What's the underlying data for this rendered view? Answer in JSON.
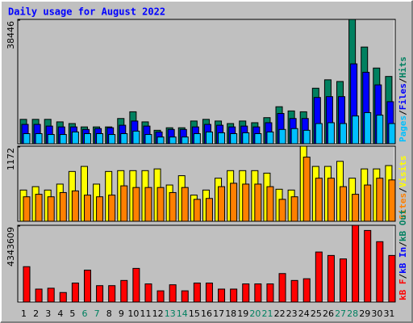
{
  "chart_data": [
    {
      "type": "bar",
      "title": "Daily usage for August 2022",
      "legend_separator": "/",
      "ylim": [
        0,
        38446
      ],
      "yticks": [
        38446
      ],
      "series": [
        {
          "name": "Pages",
          "color": "#00c0ff",
          "values": [
            3120,
            3120,
            2860,
            2860,
            3640,
            3120,
            3120,
            2860,
            3120,
            3900,
            2860,
            2080,
            2080,
            2080,
            3120,
            3640,
            3380,
            3120,
            3380,
            3120,
            3640,
            4420,
            4680,
            4160,
            6240,
            6500,
            6240,
            8580,
            9620,
            8840,
            6240
          ]
        },
        {
          "name": "Files",
          "color": "#0000ff",
          "values": [
            5980,
            5980,
            5460,
            5200,
            5200,
            4420,
            4680,
            4940,
            5720,
            7020,
            5460,
            3640,
            4420,
            4420,
            5200,
            5980,
            5720,
            5200,
            5460,
            5200,
            6500,
            9360,
            7800,
            7800,
            14300,
            14560,
            14560,
            24700,
            22100,
            18200,
            13000
          ]
        },
        {
          "name": "Hits",
          "color": "#008060",
          "values": [
            7540,
            7540,
            7540,
            6760,
            6240,
            5200,
            5200,
            5200,
            7800,
            9880,
            6760,
            4160,
            4940,
            4940,
            7020,
            7540,
            7020,
            6240,
            7020,
            6500,
            8060,
            11440,
            10140,
            9880,
            17160,
            19760,
            19240,
            38446,
            29900,
            23400,
            20800
          ]
        }
      ]
    },
    {
      "type": "bar",
      "legend_separator": "/",
      "ylim": [
        0,
        1172
      ],
      "yticks": [
        1172
      ],
      "series": [
        {
          "name": "Sites",
          "color": "#ff8000",
          "values": [
            382,
            421,
            382,
            448,
            474,
            408,
            382,
            408,
            553,
            527,
            527,
            527,
            448,
            527,
            342,
            356,
            540,
            593,
            580,
            580,
            540,
            342,
            382,
            1001,
            672,
            672,
            540,
            421,
            566,
            672,
            645
          ]
        },
        {
          "name": "Visits",
          "color": "#ffff00",
          "values": [
            487,
            540,
            487,
            580,
            777,
            856,
            580,
            777,
            790,
            790,
            790,
            817,
            566,
            711,
            408,
            487,
            672,
            790,
            790,
            790,
            751,
            500,
            487,
            1172,
            856,
            856,
            935,
            672,
            817,
            817,
            869
          ]
        }
      ]
    },
    {
      "type": "bar",
      "legend_separator": "/",
      "ylim": [
        0,
        4343609
      ],
      "yticks": [
        4343609
      ],
      "categories": [
        "1",
        "2",
        "3",
        "4",
        "5",
        "6",
        "7",
        "8",
        "9",
        "10",
        "11",
        "12",
        "13",
        "14",
        "15",
        "16",
        "17",
        "18",
        "19",
        "20",
        "21",
        "22",
        "23",
        "24",
        "25",
        "26",
        "27",
        "28",
        "29",
        "30",
        "31"
      ],
      "x_label_colors": [
        "#000000",
        "#000000",
        "#000000",
        "#000000",
        "#000000",
        "#008060",
        "#008060",
        "#000000",
        "#000000",
        "#000000",
        "#000000",
        "#000000",
        "#008060",
        "#008060",
        "#000000",
        "#000000",
        "#000000",
        "#000000",
        "#000000",
        "#008060",
        "#008060",
        "#000000",
        "#000000",
        "#000000",
        "#000000",
        "#000000",
        "#008060",
        "#008060",
        "#000000",
        "#000000",
        "#000000"
      ],
      "series": [
        {
          "name": "kB F",
          "color": "#ff0000",
          "values": [
            2001000,
            732000,
            781000,
            537000,
            1074000,
            1806000,
            927000,
            927000,
            1220000,
            1903000,
            1025000,
            634000,
            976000,
            634000,
            1074000,
            1074000,
            732000,
            732000,
            1025000,
            1025000,
            1025000,
            1611000,
            1220000,
            1318000,
            2831000,
            2635000,
            2440000,
            4343609,
            4051000,
            3416000,
            2635000
          ]
        },
        {
          "name": "kB In",
          "color": "#0000ff",
          "values": [
            0,
            0,
            0,
            0,
            0,
            0,
            0,
            0,
            0,
            0,
            0,
            0,
            0,
            0,
            0,
            0,
            0,
            0,
            0,
            0,
            0,
            0,
            0,
            0,
            0,
            0,
            0,
            0,
            0,
            0,
            0
          ]
        },
        {
          "name": "kB Out",
          "color": "#008060",
          "values": [
            0,
            0,
            0,
            0,
            0,
            0,
            0,
            0,
            0,
            0,
            0,
            0,
            0,
            0,
            0,
            0,
            0,
            0,
            0,
            0,
            0,
            0,
            0,
            0,
            0,
            0,
            0,
            0,
            0,
            0,
            0
          ]
        }
      ]
    }
  ]
}
